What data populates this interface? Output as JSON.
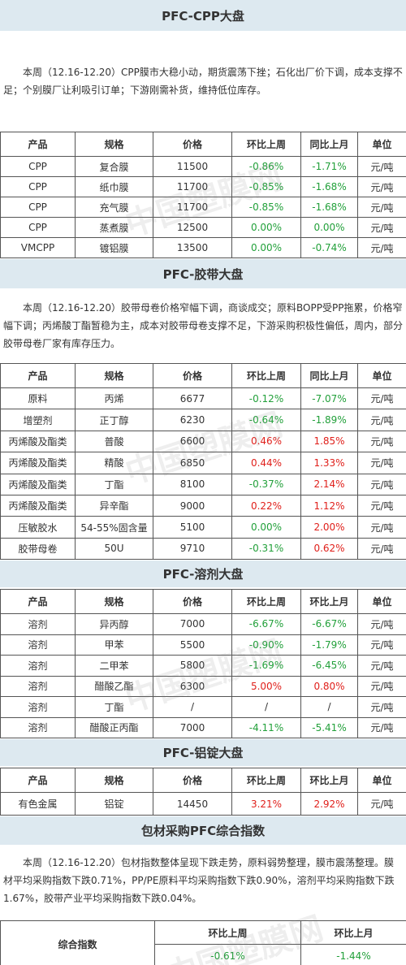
{
  "colors": {
    "header_bg": "#dde9f0",
    "rise": "#e0201b",
    "fall": "#22a03a"
  },
  "watermark": "中国塑膜网",
  "sections": [
    {
      "title": "PFC-CPP大盘",
      "text": "本周（12.16-12.20）CPP膜市大稳小动，期货震荡下挫；石化出厂价下调，成本支撑不足；个别膜厂让利吸引订单；下游刚需补货，维持低位库存。",
      "table": {
        "header": [
          "产品",
          "规格",
          "价格",
          "环比上周",
          "同比上月",
          "单位"
        ],
        "rows": [
          [
            "CPP",
            "复合膜",
            "11500",
            "-0.86%",
            "-1.71%",
            "元/吨"
          ],
          [
            "CPP",
            "纸巾膜",
            "11700",
            "-0.85%",
            "-1.68%",
            "元/吨"
          ],
          [
            "CPP",
            "充气膜",
            "11700",
            "-0.85%",
            "-1.68%",
            "元/吨"
          ],
          [
            "CPP",
            "蒸煮膜",
            "12500",
            "0.00%",
            "0.00%",
            "元/吨"
          ],
          [
            "VMCPP",
            "镀铝膜",
            "13500",
            "0.00%",
            "-0.74%",
            "元/吨"
          ]
        ]
      }
    },
    {
      "title": "PFC-胶带大盘",
      "text": "本周（12.16-12.20）胶带母卷价格窄幅下调，商谈成交；原料BOPP受PP拖累，价格窄幅下调；丙烯酸丁酯暂稳为主，成本对胶带母卷支撑不足，下游采购积极性偏低，周内，部分胶带母卷厂家有库存压力。",
      "table": {
        "header": [
          "产品",
          "规格",
          "价格",
          "环比上周",
          "同比上月",
          "单位"
        ],
        "rows": [
          [
            "原料",
            "丙烯",
            "6677",
            "-0.12%",
            "-7.07%",
            "元/吨"
          ],
          [
            "增塑剂",
            "正丁醇",
            "6230",
            "-0.64%",
            "-1.89%",
            "元/吨"
          ],
          [
            "丙烯酸及酯类",
            "普酸",
            "6600",
            "0.46%",
            "1.85%",
            "元/吨"
          ],
          [
            "丙烯酸及酯类",
            "精酸",
            "6850",
            "0.44%",
            "1.33%",
            "元/吨"
          ],
          [
            "丙烯酸及酯类",
            "丁酯",
            "8100",
            "-0.37%",
            "2.14%",
            "元/吨"
          ],
          [
            "丙烯酸及酯类",
            "异辛酯",
            "9000",
            "0.22%",
            "1.12%",
            "元/吨"
          ],
          [
            "压敏胶水",
            "54-55%固含量",
            "5100",
            "0.00%",
            "2.00%",
            "元/吨"
          ],
          [
            "胶带母卷",
            "50U",
            "9710",
            "-0.31%",
            "0.62%",
            "元/吨"
          ]
        ]
      }
    },
    {
      "title": "PFC-溶剂大盘",
      "table": {
        "header": [
          "产品",
          "规格",
          "价格",
          "环比上周",
          "环比上月",
          "单位"
        ],
        "rows": [
          [
            "溶剂",
            "异丙醇",
            "7000",
            "-6.67%",
            "-6.67%",
            "元/吨"
          ],
          [
            "溶剂",
            "甲苯",
            "5500",
            "-0.90%",
            "-1.79%",
            "元/吨"
          ],
          [
            "溶剂",
            "二甲苯",
            "5800",
            "-1.69%",
            "-6.45%",
            "元/吨"
          ],
          [
            "溶剂",
            "醋酸乙酯",
            "6300",
            "5.00%",
            "0.80%",
            "元/吨"
          ],
          [
            "溶剂",
            "丁酯",
            "/",
            "/",
            "/",
            "元/吨"
          ],
          [
            "溶剂",
            "醋酸正丙酯",
            "7000",
            "-4.11%",
            "-5.41%",
            "元/吨"
          ]
        ]
      }
    },
    {
      "title": "PFC-铝锭大盘",
      "table": {
        "header": [
          "产品",
          "规格",
          "价格",
          "环比上周",
          "环比上月",
          "单位"
        ],
        "rows": [
          [
            "有色金属",
            "铝锭",
            "14450",
            "3.21%",
            "2.92%",
            "元/吨"
          ]
        ]
      }
    },
    {
      "title": "包材采购PFC综合指数",
      "text": "本周（12.16-12.20）包材指数整体呈现下跌走势，原料弱势整理，膜市震荡整理。膜材平均采购指数下跌0.71%，PP/PE原料平均采购指数下跌0.90%，溶剂平均采购指数下跌1.67%，胶带产业平均采购指数下跌0.04%。",
      "index_table": {
        "label": "综合指数",
        "header": [
          "环比上周",
          "环比上月"
        ],
        "values": [
          "-0.61%",
          "-1.44%"
        ]
      }
    }
  ]
}
